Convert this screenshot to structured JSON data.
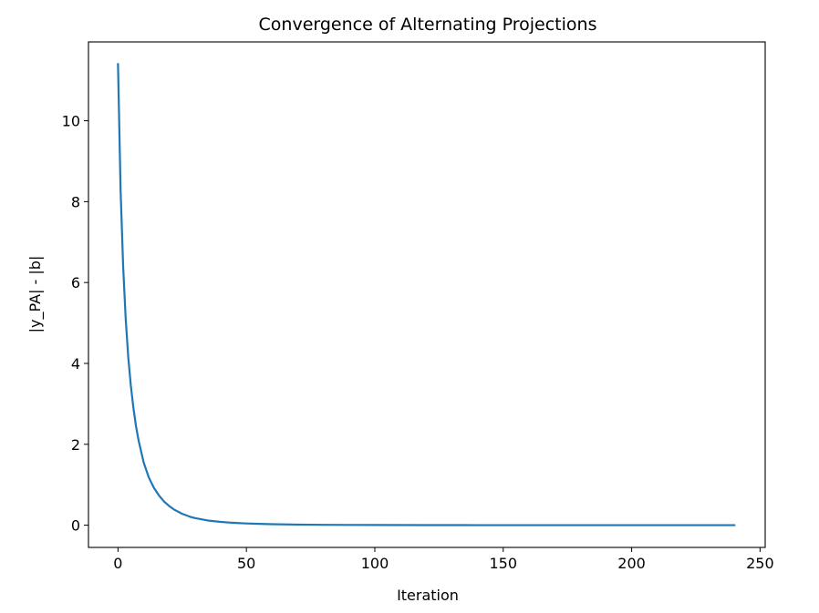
{
  "chart_data": {
    "type": "line",
    "title": "Convergence of Alternating Projections",
    "xlabel": "Iteration",
    "ylabel": "|y_PA| - |b|",
    "xlim": [
      -11.5,
      252
    ],
    "ylim": [
      -0.55,
      11.95
    ],
    "xticks": [
      0,
      50,
      100,
      150,
      200,
      250
    ],
    "yticks": [
      0,
      2,
      4,
      6,
      8,
      10
    ],
    "grid": false,
    "series": [
      {
        "color": "#1f77b4",
        "x": [
          0,
          1,
          2,
          3,
          4,
          5,
          6,
          7,
          8,
          10,
          12,
          14,
          16,
          18,
          20,
          22,
          25,
          28,
          30,
          35,
          40,
          45,
          50,
          55,
          60,
          70,
          80,
          90,
          100,
          120,
          140,
          160,
          180,
          200,
          220,
          240
        ],
        "y": [
          11.4,
          8.3,
          6.4,
          5.1,
          4.15,
          3.45,
          2.9,
          2.45,
          2.1,
          1.55,
          1.18,
          0.92,
          0.73,
          0.58,
          0.47,
          0.38,
          0.28,
          0.21,
          0.175,
          0.115,
          0.08,
          0.058,
          0.043,
          0.032,
          0.024,
          0.014,
          0.009,
          0.006,
          0.004,
          0.002,
          0.001,
          0.0006,
          0.0004,
          0.0002,
          0.0001,
          0.0001
        ]
      }
    ]
  }
}
